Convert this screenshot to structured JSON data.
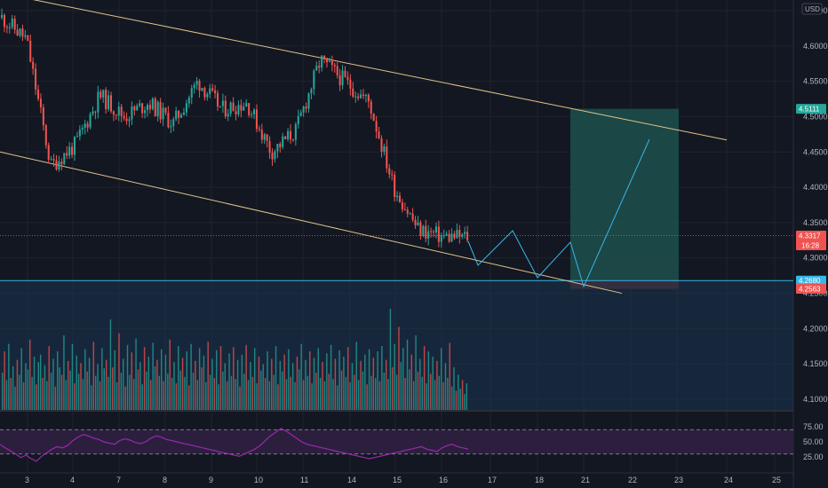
{
  "symbol_currency": "USD",
  "colors": {
    "background": "#131722",
    "grid": "#1f232d",
    "up": "#26a69a",
    "down": "#ef5350",
    "channel": "#e0c38a",
    "projection": "#38b6e8",
    "target_zone": "#1d4d4a",
    "stop_zone": "#5b2a2e",
    "volume_zone": "#1c3550",
    "rsi_line": "#9c27b0",
    "rsi_band": "#2b1f3d",
    "current_price": "#ef5350",
    "entry_line": "#38b6e8"
  },
  "tags": {
    "target": "4.5111",
    "current_price": "4.3317",
    "countdown": "16:28",
    "entry": "4.2680",
    "stop": "4.2563"
  },
  "chart_data": [
    {
      "type": "candlestick",
      "title": "",
      "x_axis_ticks": [
        "3",
        "4",
        "7",
        "8",
        "9",
        "10",
        "11",
        "14",
        "15",
        "16",
        "17",
        "18",
        "21",
        "22",
        "23",
        "24",
        "25"
      ],
      "y_axis_ticks": [
        "4.6500",
        "4.6000",
        "4.5500",
        "4.5000",
        "4.4500",
        "4.4000",
        "4.3500",
        "4.3000",
        "4.2500",
        "4.2000",
        "4.1500",
        "4.1000"
      ],
      "ylim": [
        4.085,
        4.665
      ],
      "approx_close_path": [
        {
          "x": "3",
          "close": 4.64
        },
        {
          "x": "3",
          "close": 4.61
        },
        {
          "x": "4",
          "close": 4.43
        },
        {
          "x": "4",
          "close": 4.46
        },
        {
          "x": "7",
          "close": 4.53
        },
        {
          "x": "7",
          "close": 4.5
        },
        {
          "x": "8",
          "close": 4.52
        },
        {
          "x": "8",
          "close": 4.49
        },
        {
          "x": "9",
          "close": 4.55
        },
        {
          "x": "9",
          "close": 4.51
        },
        {
          "x": "10",
          "close": 4.52
        },
        {
          "x": "10",
          "close": 4.45
        },
        {
          "x": "11",
          "close": 4.48
        },
        {
          "x": "11",
          "close": 4.58
        },
        {
          "x": "14",
          "close": 4.55
        },
        {
          "x": "14",
          "close": 4.52
        },
        {
          "x": "15",
          "close": 4.4
        },
        {
          "x": "15",
          "close": 4.34
        },
        {
          "x": "16",
          "close": 4.33
        },
        {
          "x": "16",
          "close": 4.33
        }
      ],
      "channel": {
        "upper": [
          {
            "x": "3",
            "y": 4.675
          },
          {
            "x": "24",
            "y": 4.467
          }
        ],
        "lower": [
          {
            "x": "3",
            "y": 4.45
          },
          {
            "x": "22",
            "y": 4.255
          }
        ]
      },
      "projection_path": [
        {
          "x": "16",
          "y": 4.33
        },
        {
          "x": "17",
          "y": 4.298
        },
        {
          "x": "17",
          "y": 4.354
        },
        {
          "x": "18",
          "y": 4.277
        },
        {
          "x": "21",
          "y": 4.333
        },
        {
          "x": "21",
          "y": 4.268
        },
        {
          "x": "22",
          "y": 4.49
        }
      ],
      "position": {
        "entry": 4.268,
        "target": 4.5111,
        "stop": 4.2563
      }
    },
    {
      "type": "bar",
      "title": "",
      "series": [
        {
          "values": [
            0.35,
            0.55,
            0.28,
            0.62,
            0.3,
            0.41,
            0.22,
            0.47,
            0.33,
            0.58,
            0.26,
            0.44,
            0.38,
            0.66,
            0.31,
            0.5,
            0.24,
            0.45,
            0.52,
            0.3,
            0.42,
            0.27,
            0.6,
            0.35,
            0.48,
            0.22,
            0.55,
            0.4,
            0.33,
            0.7,
            0.28,
            0.46,
            0.37,
            0.62,
            0.25,
            0.51,
            0.34,
            0.44,
            0.29,
            0.57,
            0.36,
            0.49,
            0.23,
            0.64,
            0.32,
            0.43,
            0.27,
            0.58,
            0.39,
            0.47,
            0.31,
            0.85,
            0.4,
            0.56,
            0.26,
            0.72,
            0.35,
            0.48,
            0.22,
            0.61,
            0.33,
            0.54,
            0.29,
            0.67,
            0.38,
            0.45,
            0.24,
            0.59,
            0.36,
            0.5,
            0.28,
            0.63,
            0.41,
            0.47,
            0.32,
            0.57,
            0.27,
            0.52,
            0.34,
            0.66,
            0.3,
            0.45,
            0.25,
            0.6,
            0.37,
            0.49,
            0.31,
            0.55,
            0.23,
            0.62,
            0.35,
            0.46,
            0.28,
            0.58,
            0.4,
            0.51,
            0.26,
            0.64,
            0.33,
            0.48,
            0.3,
            0.56,
            0.24,
            0.6,
            0.36,
            0.44,
            0.27,
            0.53,
            0.32,
            0.59,
            0.29,
            0.47,
            0.22,
            0.52,
            0.34,
            0.61,
            0.28,
            0.45,
            0.31,
            0.58,
            0.25,
            0.5,
            0.37,
            0.43,
            0.3,
            0.55,
            0.27,
            0.48,
            0.33,
            0.6,
            0.24,
            0.46,
            0.36,
            0.52,
            0.29,
            0.57,
            0.31,
            0.44,
            0.26,
            0.5,
            0.38,
            0.62,
            0.28,
            0.47,
            0.32,
            0.55,
            0.25,
            0.49,
            0.35,
            0.58,
            0.3,
            0.45,
            0.27,
            0.53,
            0.34,
            0.61,
            0.29,
            0.48,
            0.23,
            0.56,
            0.37,
            0.5,
            0.31,
            0.59,
            0.26,
            0.44,
            0.33,
            0.64,
            0.28,
            0.46,
            0.36,
            0.52,
            0.24,
            0.57,
            0.32,
            0.49,
            0.3,
            0.55,
            0.27,
            0.6,
            0.35,
            0.47,
            0.29,
            0.95,
            0.4,
            0.62,
            0.33,
            0.78,
            0.45,
            0.58,
            0.3,
            0.66,
            0.38,
            0.52,
            0.27,
            0.7,
            0.36,
            0.48,
            0.31,
            0.6,
            0.25,
            0.55,
            0.34,
            0.5,
            0.28,
            0.46,
            0.32,
            0.58,
            0.26,
            0.44,
            0.3,
            0.63,
            0.22,
            0.4,
            0.18,
            0.33,
            0.2,
            0.28,
            0.15,
            0.25
          ]
        }
      ]
    },
    {
      "type": "line",
      "title": "",
      "y_axis_ticks": [
        "75.00",
        "50.00",
        "25.00"
      ],
      "ylim": [
        0,
        100
      ],
      "band": [
        30,
        70
      ],
      "series": [
        {
          "values": [
            46,
            40,
            35,
            30,
            24,
            28,
            22,
            18,
            26,
            32,
            38,
            42,
            40,
            44,
            52,
            58,
            62,
            60,
            56,
            54,
            50,
            48,
            46,
            52,
            55,
            53,
            49,
            47,
            50,
            56,
            60,
            58,
            54,
            52,
            50,
            48,
            46,
            44,
            42,
            40,
            38,
            36,
            34,
            32,
            30,
            28,
            26,
            30,
            34,
            38,
            44,
            52,
            60,
            66,
            72,
            68,
            62,
            56,
            50,
            46,
            44,
            42,
            40,
            38,
            36,
            34,
            32,
            30,
            28,
            26,
            24,
            22,
            24,
            26,
            28,
            30,
            32,
            34,
            36,
            38,
            40,
            42,
            38,
            36,
            34,
            40,
            44,
            46,
            42,
            40,
            38
          ]
        }
      ]
    }
  ]
}
